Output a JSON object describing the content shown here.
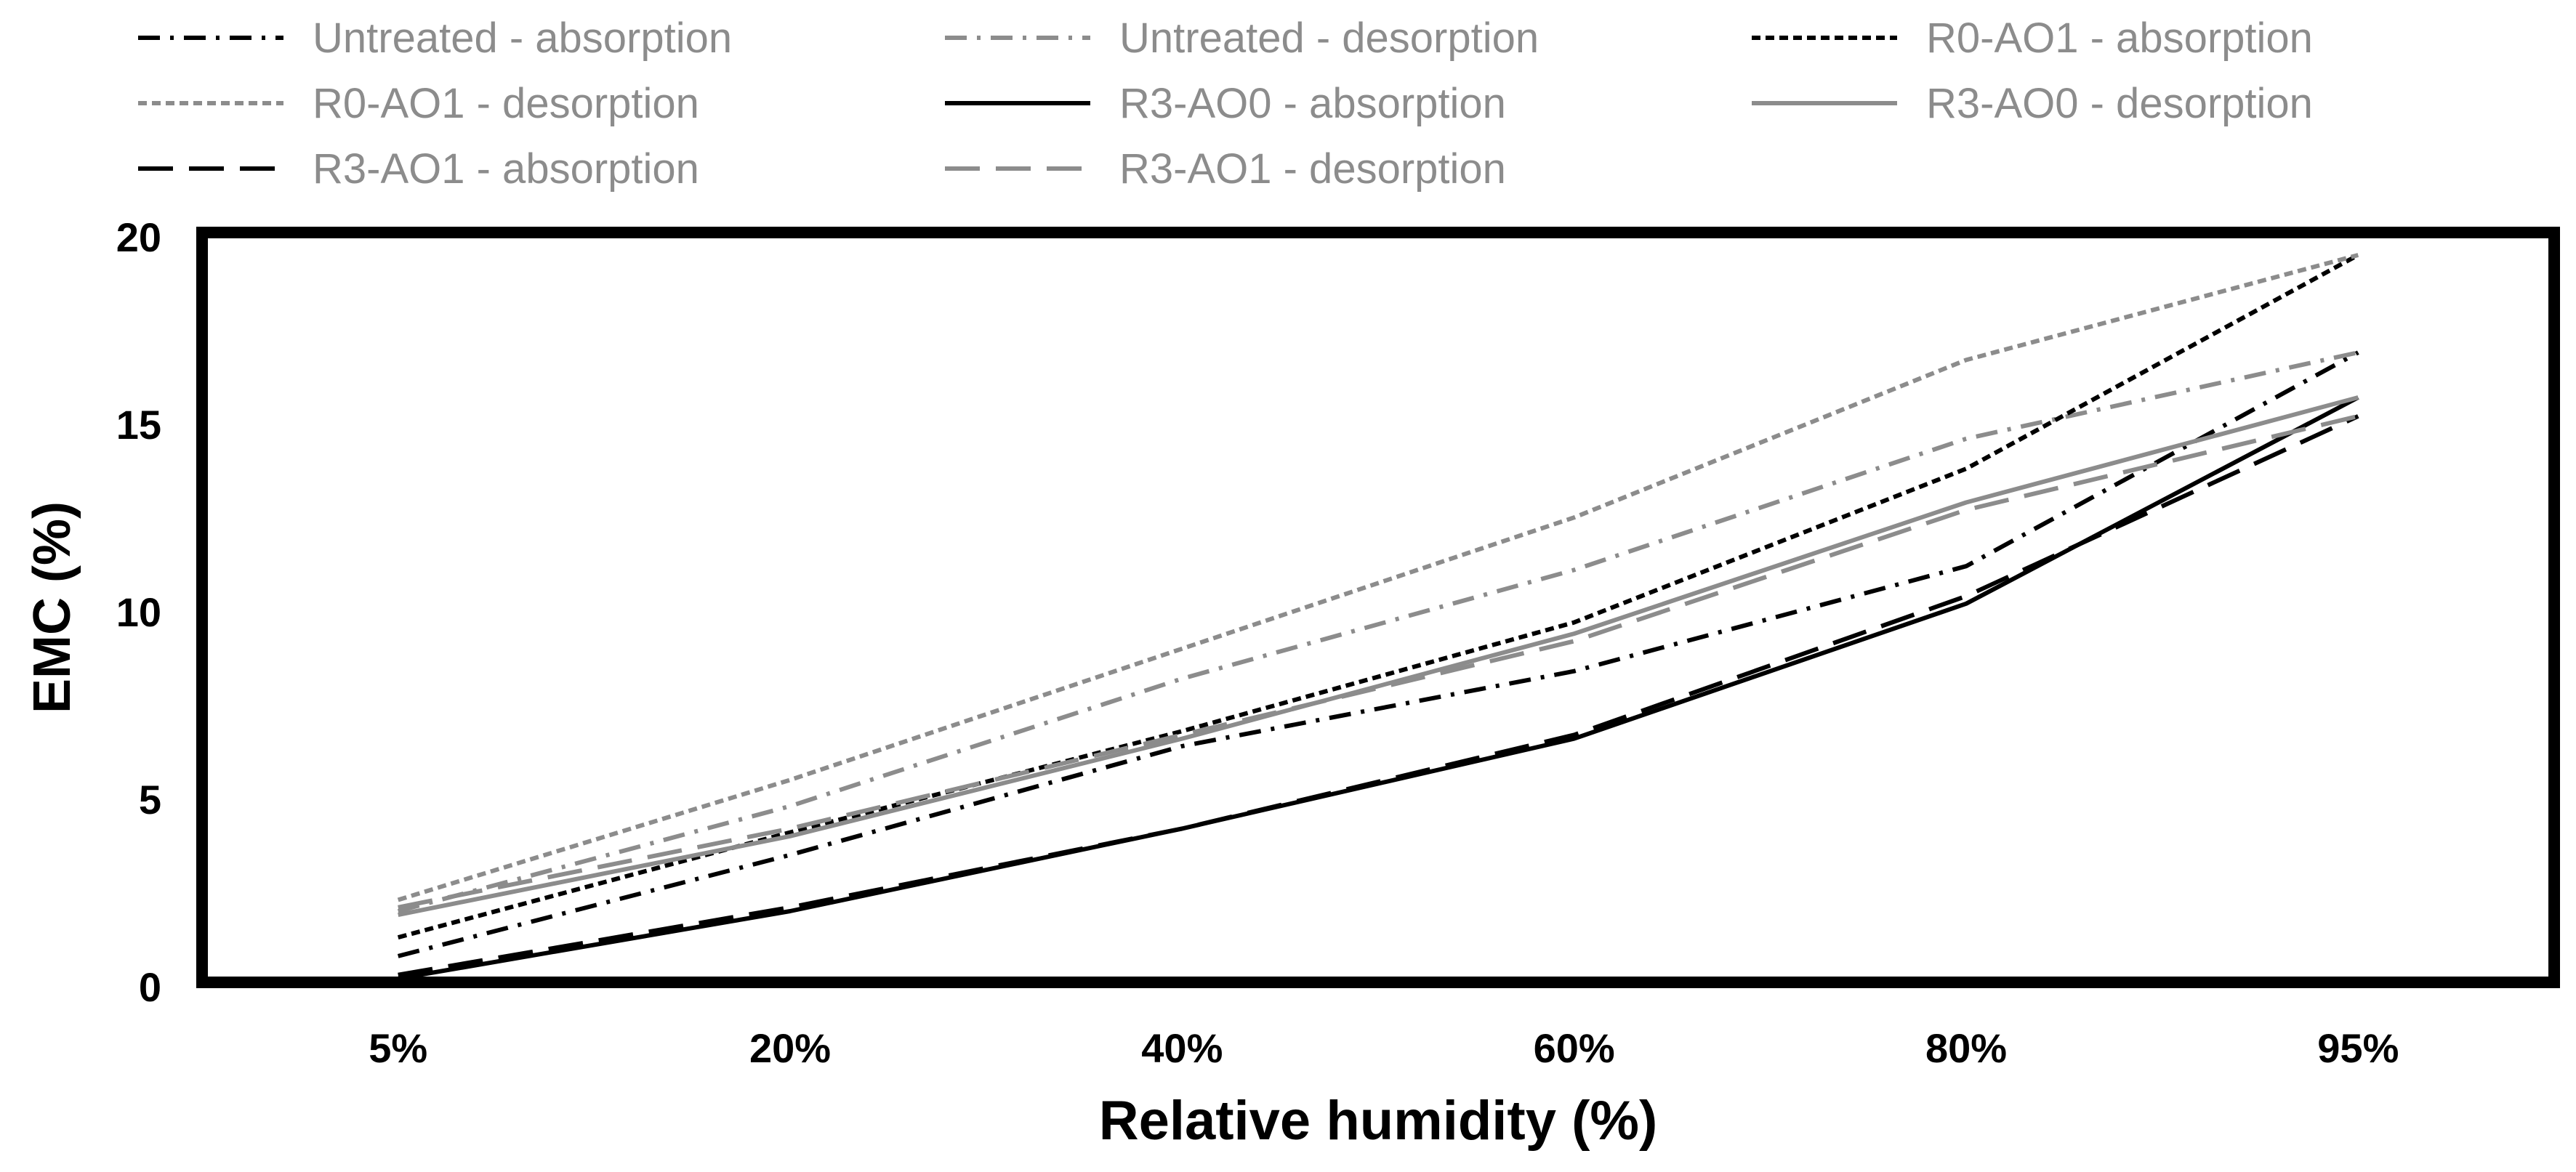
{
  "chart_data": {
    "type": "line",
    "title": "",
    "xlabel": "Relative humidity (%)",
    "ylabel": "EMC (%)",
    "categories": [
      "5%",
      "20%",
      "40%",
      "60%",
      "80%",
      "95%"
    ],
    "ylim": [
      0,
      20
    ],
    "yticks": [
      0,
      5,
      10,
      15,
      20
    ],
    "grid": false,
    "legend_position": "top",
    "series": [
      {
        "name": "Untreated - absorption",
        "color": "#000000",
        "dash": "dashdot",
        "values": [
          0.7,
          3.4,
          6.3,
          8.3,
          11.1,
          16.8
        ]
      },
      {
        "name": "Untreated - desorption",
        "color": "#8c8c8c",
        "dash": "dashdot",
        "values": [
          1.9,
          4.7,
          8.1,
          11.0,
          14.5,
          16.8
        ]
      },
      {
        "name": "R0-AO1 - absorption",
        "color": "#000000",
        "dash": "dotted",
        "values": [
          1.2,
          4.0,
          6.7,
          9.6,
          13.7,
          19.4
        ]
      },
      {
        "name": "R0-AO1 - desorption",
        "color": "#8c8c8c",
        "dash": "dotted",
        "values": [
          2.2,
          5.4,
          8.9,
          12.4,
          16.6,
          19.4
        ]
      },
      {
        "name": "R3-AO0 - absorption",
        "color": "#000000",
        "dash": "solid",
        "values": [
          0.1,
          1.9,
          4.1,
          6.5,
          10.1,
          15.6
        ]
      },
      {
        "name": "R3-AO0 - desorption",
        "color": "#8c8c8c",
        "dash": "solid",
        "values": [
          1.8,
          3.9,
          6.5,
          9.3,
          12.8,
          15.6
        ]
      },
      {
        "name": "R3-AO1 - absorption",
        "color": "#000000",
        "dash": "longdash",
        "values": [
          0.2,
          2.0,
          4.1,
          6.6,
          10.3,
          15.1
        ]
      },
      {
        "name": "R3-AO1 - desorption",
        "color": "#8c8c8c",
        "dash": "longdash",
        "values": [
          2.0,
          4.1,
          6.6,
          9.1,
          12.6,
          15.1
        ]
      }
    ]
  }
}
